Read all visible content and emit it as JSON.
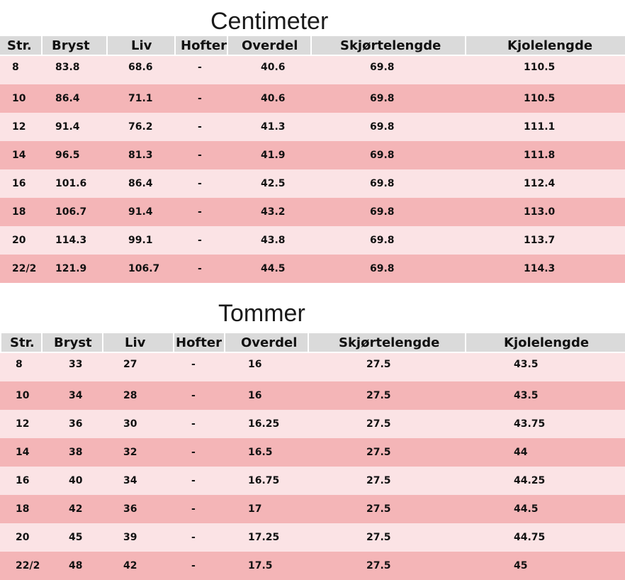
{
  "colors": {
    "header_bg": "#dadada",
    "row_light": "#fbe3e5",
    "row_dark": "#f4b5b7",
    "text": "#111111"
  },
  "tables": [
    {
      "title": "Centimeter",
      "headers": [
        "Str.",
        "Bryst",
        "Liv",
        "Hofter",
        "Overdel",
        "Skjørtelengde",
        "Kjolelengde"
      ],
      "rows": [
        [
          "8",
          "83.8",
          "68.6",
          "-",
          "40.6",
          "69.8",
          "110.5"
        ],
        [
          "10",
          "86.4",
          "71.1",
          "-",
          "40.6",
          "69.8",
          "110.5"
        ],
        [
          "12",
          "91.4",
          "76.2",
          "-",
          "41.3",
          "69.8",
          "111.1"
        ],
        [
          "14",
          "96.5",
          "81.3",
          "-",
          "41.9",
          "69.8",
          "111.8"
        ],
        [
          "16",
          "101.6",
          "86.4",
          "-",
          "42.5",
          "69.8",
          "112.4"
        ],
        [
          "18",
          "106.7",
          "91.4",
          "-",
          "43.2",
          "69.8",
          "113.0"
        ],
        [
          "20",
          "114.3",
          "99.1",
          "-",
          "43.8",
          "69.8",
          "113.7"
        ],
        [
          "22/2",
          "121.9",
          "106.7",
          "-",
          "44.5",
          "69.8",
          "114.3"
        ]
      ]
    },
    {
      "title": "Tommer",
      "headers": [
        "Str.",
        "Bryst",
        "Liv",
        "Hofter",
        "Overdel",
        "Skjørtelengde",
        "Kjolelengde"
      ],
      "rows": [
        [
          "8",
          "33",
          "27",
          "-",
          "16",
          "27.5",
          "43.5"
        ],
        [
          "10",
          "34",
          "28",
          "-",
          "16",
          "27.5",
          "43.5"
        ],
        [
          "12",
          "36",
          "30",
          "-",
          "16.25",
          "27.5",
          "43.75"
        ],
        [
          "14",
          "38",
          "32",
          "-",
          "16.5",
          "27.5",
          "44"
        ],
        [
          "16",
          "40",
          "34",
          "-",
          "16.75",
          "27.5",
          "44.25"
        ],
        [
          "18",
          "42",
          "36",
          "-",
          "17",
          "27.5",
          "44.5"
        ],
        [
          "20",
          "45",
          "39",
          "-",
          "17.25",
          "27.5",
          "44.75"
        ],
        [
          "22/2",
          "48",
          "42",
          "-",
          "17.5",
          "27.5",
          "45"
        ]
      ]
    }
  ]
}
